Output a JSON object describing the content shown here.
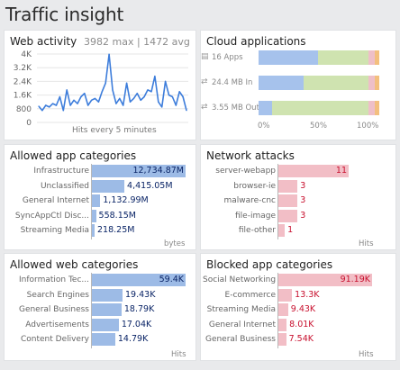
{
  "page_title": "Traffic insight",
  "web_activity": {
    "title": "Web activity",
    "summary": "3982 max | 1472 avg",
    "x_label": "Hits every 5 minutes",
    "chart_data": {
      "type": "line",
      "title": "Web activity",
      "xlabel": "Hits every 5 minutes",
      "ylabel": "",
      "ylim": [
        0,
        4000
      ],
      "y_ticks": [
        "4K",
        "3.2K",
        "2.4K",
        "1.6K",
        "800",
        "0"
      ],
      "grid": true,
      "values": [
        950,
        700,
        1000,
        900,
        1100,
        1000,
        1500,
        700,
        1900,
        1000,
        1300,
        1100,
        1500,
        1700,
        1000,
        1300,
        1400,
        1200,
        1800,
        2300,
        3982,
        1900,
        1100,
        1400,
        1000,
        2300,
        1200,
        1400,
        1700,
        1300,
        1500,
        1900,
        1800,
        2700,
        1200,
        900,
        2400,
        1600,
        1500,
        1000,
        1800,
        1500,
        700
      ],
      "color": "#3d7ddb"
    }
  },
  "cloud_apps": {
    "title": "Cloud applications",
    "rows": [
      {
        "label": "16 Apps",
        "icon": "cloud-app-icon",
        "glyph": "▤",
        "segments": [
          0.49,
          0.42,
          0.05,
          0.04
        ]
      },
      {
        "label": "24.4 MB In",
        "icon": "transfer-icon",
        "glyph": "⇄",
        "segments": [
          0.37,
          0.54,
          0.05,
          0.04
        ]
      },
      {
        "label": "3.55 MB Out",
        "icon": "transfer-icon",
        "glyph": "⇄",
        "segments": [
          0.11,
          0.8,
          0.05,
          0.04
        ]
      }
    ],
    "segment_colors": [
      "#a6c2ec",
      "#cfe3b0",
      "#eebfc8",
      "#f3bf7e"
    ],
    "ticks": [
      "0%",
      "50%",
      "100%"
    ]
  },
  "allowed_app_categories": {
    "title": "Allowed app categories",
    "unit": "bytes",
    "items": [
      {
        "label": "Infrastructure",
        "value": "12,734.87M",
        "num": 12734.87
      },
      {
        "label": "Unclassified",
        "value": "4,415.05M",
        "num": 4415.05
      },
      {
        "label": "General Internet",
        "value": "1,132.99M",
        "num": 1132.99
      },
      {
        "label": "SyncAppCtl Disc...",
        "value": "558.15M",
        "num": 558.15
      },
      {
        "label": "Streaming Media",
        "value": "218.25M",
        "num": 218.25
      }
    ]
  },
  "network_attacks": {
    "title": "Network attacks",
    "unit": "Hits",
    "items": [
      {
        "label": "server-webapp",
        "value": "11",
        "num": 11
      },
      {
        "label": "browser-ie",
        "value": "3",
        "num": 3
      },
      {
        "label": "malware-cnc",
        "value": "3",
        "num": 3
      },
      {
        "label": "file-image",
        "value": "3",
        "num": 3
      },
      {
        "label": "file-other",
        "value": "1",
        "num": 1
      }
    ]
  },
  "allowed_web_categories": {
    "title": "Allowed web categories",
    "unit": "Hits",
    "items": [
      {
        "label": "Information Tec...",
        "value": "59.4K",
        "num": 59.4
      },
      {
        "label": "Search Engines",
        "value": "19.43K",
        "num": 19.43
      },
      {
        "label": "General Business",
        "value": "18.79K",
        "num": 18.79
      },
      {
        "label": "Advertisements",
        "value": "17.04K",
        "num": 17.04
      },
      {
        "label": "Content Delivery",
        "value": "14.79K",
        "num": 14.79
      }
    ]
  },
  "blocked_app_categories": {
    "title": "Blocked app categories",
    "unit": "Hits",
    "items": [
      {
        "label": "Social Networking",
        "value": "91.19K",
        "num": 91.19
      },
      {
        "label": "E-commerce",
        "value": "13.3K",
        "num": 13.3
      },
      {
        "label": "Streaming Media",
        "value": "9.43K",
        "num": 9.43
      },
      {
        "label": "General Internet",
        "value": "8.01K",
        "num": 8.01
      },
      {
        "label": "General Business",
        "value": "7.54K",
        "num": 7.54
      }
    ]
  }
}
